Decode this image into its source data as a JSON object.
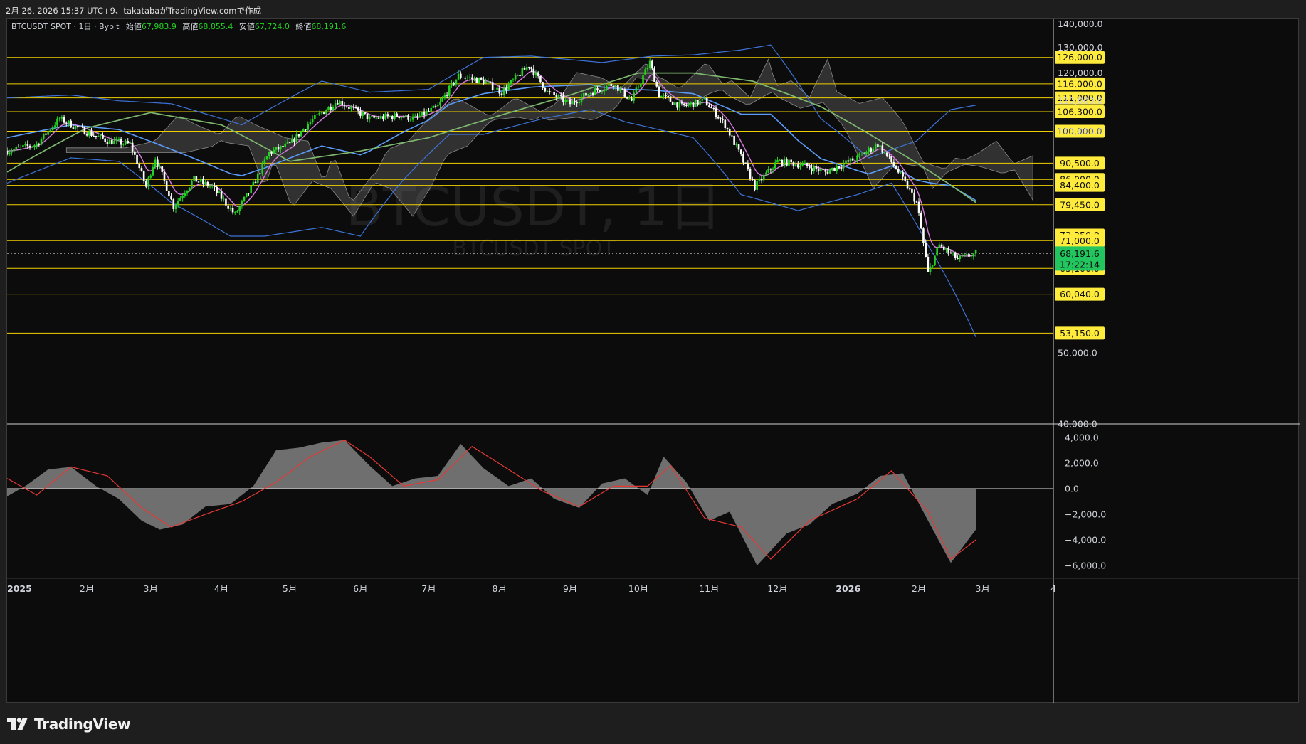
{
  "header": {
    "text": "2月 26, 2026 15:37 UTC+9、takatabaがTradingView.comで作成"
  },
  "legend": {
    "symbol": "BTCUSDT SPOT · 1日 · Bybit",
    "open_label": "始値",
    "open": "67,983.9",
    "high_label": "高値",
    "high": "68,855.4",
    "low_label": "安値",
    "low": "67,724.0",
    "close_label": "終値",
    "close": "68,191.6"
  },
  "watermark": {
    "title": "BTCUSDT, 1日",
    "subtitle": "BTCUSDT SPOT"
  },
  "footer": {
    "brand": "TradingView",
    "logo_icon": "tradingview-logo-icon"
  },
  "colors": {
    "background": "#0c0c0c",
    "level_line": "#f0d000",
    "level_label_bg": "#ffeb3b",
    "bull_candle": "#22d321",
    "bear_candle": "#ffffff",
    "bollinger": "#3d73d6",
    "mid_band": "#5b9bf8",
    "short_ma": "#d67bde",
    "long_ma": "#7fb86f",
    "cloud": "#606060",
    "macd_hist": "#757575",
    "macd_signal": "#e53935",
    "price_label_bg": "#22c55e"
  },
  "chart_data": [
    {
      "type": "line",
      "title": "BTCUSDT, 1日",
      "y_scale": "log",
      "ylim": [
        40000,
        142000
      ],
      "y_tick_labels": [
        "140,000.0",
        "130,000.0",
        "120,000.0",
        "110,000.0",
        "100,000.0",
        "50,000.0",
        "40,000.0"
      ],
      "y_ticks": [
        140000,
        130000,
        120000,
        110000,
        100000,
        50000,
        40000
      ],
      "x_tick_labels": [
        "2025",
        "2月",
        "3月",
        "4月",
        "5月",
        "6月",
        "7月",
        "8月",
        "9月",
        "10月",
        "11月",
        "12月",
        "2026",
        "2月",
        "3月",
        "4"
      ],
      "x_ticks": [
        "2025-01-01",
        "2025-02-01",
        "2025-03-01",
        "2025-04-01",
        "2025-05-01",
        "2025-06-01",
        "2025-07-01",
        "2025-08-01",
        "2025-09-01",
        "2025-10-01",
        "2025-11-01",
        "2025-12-01",
        "2026-01-01",
        "2026-02-01",
        "2026-03-01",
        "2026-04-01"
      ],
      "horizontal_levels": [
        126000,
        116000,
        111000,
        106300,
        100000,
        90500,
        86000,
        84400,
        79450,
        72250,
        71000,
        65100,
        60040,
        53150
      ],
      "horizontal_level_labels": [
        "126,000.0",
        "116,000.0",
        "111,000.0",
        "106,300.0",
        "100,000.0",
        "90,500.0",
        "86,000.0",
        "84,400.0",
        "79,450.0",
        "72,250.0",
        "71,000.0",
        "65,100.0",
        "60,040.0",
        "53,150.0"
      ],
      "last_price": 68191.6,
      "last_price_label": "68,191.6",
      "countdown": "17:22:14",
      "series": [
        {
          "role": "price",
          "x": [
            "2024-12-28",
            "2025-01-10",
            "2025-01-20",
            "2025-01-28",
            "2025-02-10",
            "2025-02-20",
            "2025-02-27",
            "2025-03-03",
            "2025-03-11",
            "2025-03-20",
            "2025-03-28",
            "2025-04-07",
            "2025-04-15",
            "2025-04-22",
            "2025-05-01",
            "2025-05-10",
            "2025-05-22",
            "2025-06-05",
            "2025-06-18",
            "2025-06-25",
            "2025-07-05",
            "2025-07-14",
            "2025-07-25",
            "2025-08-02",
            "2025-08-14",
            "2025-08-22",
            "2025-09-01",
            "2025-09-10",
            "2025-09-20",
            "2025-09-28",
            "2025-10-06",
            "2025-10-10",
            "2025-10-20",
            "2025-10-30",
            "2025-11-08",
            "2025-11-21",
            "2025-12-01",
            "2025-12-12",
            "2025-12-22",
            "2026-01-05",
            "2026-01-14",
            "2026-01-22",
            "2026-01-31",
            "2026-02-05",
            "2026-02-10",
            "2026-02-18",
            "2026-02-26"
          ],
          "values": [
            94000,
            96000,
            104000,
            101000,
            97000,
            96000,
            84000,
            92000,
            79000,
            86000,
            84000,
            77000,
            84500,
            93500,
            96000,
            103000,
            110000,
            104000,
            105000,
            104000,
            108000,
            119000,
            117000,
            113000,
            123000,
            113000,
            109000,
            113000,
            116000,
            110000,
            124000,
            112000,
            108000,
            110000,
            102000,
            84000,
            91000,
            90000,
            88000,
            92000,
            96000,
            89000,
            80000,
            64000,
            70000,
            67000,
            68191.6
          ]
        },
        {
          "role": "bollinger_upper",
          "x": [
            "2024-12-28",
            "2025-01-25",
            "2025-02-15",
            "2025-03-10",
            "2025-04-10",
            "2025-05-15",
            "2025-06-05",
            "2025-07-01",
            "2025-07-25",
            "2025-08-15",
            "2025-09-15",
            "2025-10-07",
            "2025-10-25",
            "2025-11-15",
            "2025-11-28",
            "2025-12-20",
            "2026-01-10",
            "2026-01-31",
            "2026-02-15",
            "2026-02-26"
          ],
          "values": [
            111000,
            112000,
            110000,
            109000,
            102000,
            117000,
            113000,
            114000,
            126000,
            126500,
            124000,
            126500,
            127000,
            129000,
            131000,
            104000,
            92000,
            97000,
            107000,
            108500
          ]
        },
        {
          "role": "bollinger_lower",
          "x": [
            "2024-12-28",
            "2025-01-25",
            "2025-02-15",
            "2025-03-10",
            "2025-04-05",
            "2025-04-20",
            "2025-05-15",
            "2025-06-01",
            "2025-06-20",
            "2025-07-10",
            "2025-07-25",
            "2025-08-20",
            "2025-09-10",
            "2025-09-25",
            "2025-10-25",
            "2025-11-15",
            "2025-12-10",
            "2026-01-05",
            "2026-01-20",
            "2026-02-05",
            "2026-02-26"
          ],
          "values": [
            85000,
            92000,
            91000,
            80000,
            72000,
            72000,
            74000,
            72000,
            86000,
            99000,
            99000,
            104000,
            107000,
            103000,
            98000,
            82000,
            78000,
            82000,
            85000,
            70000,
            52500
          ]
        },
        {
          "role": "long_ma",
          "x": [
            "2024-12-28",
            "2025-02-01",
            "2025-03-01",
            "2025-04-01",
            "2025-05-01",
            "2025-06-01",
            "2025-07-01",
            "2025-08-01",
            "2025-09-01",
            "2025-10-01",
            "2025-10-25",
            "2025-11-20",
            "2025-12-20",
            "2026-01-20",
            "2026-02-26"
          ],
          "values": [
            88000,
            101000,
            106000,
            102000,
            91000,
            94000,
            98000,
            105000,
            112000,
            120000,
            120000,
            117000,
            108000,
            95000,
            80000
          ]
        }
      ]
    },
    {
      "type": "area",
      "ylim": [
        -7000,
        5000
      ],
      "y_tick_labels": [
        "4,000.0",
        "2,000.0",
        "0.0",
        "−2,000.0",
        "−4,000.0",
        "−6,000.0"
      ],
      "y_ticks": [
        4000,
        2000,
        0,
        -2000,
        -4000,
        -6000
      ],
      "series": [
        {
          "role": "histogram",
          "x": [
            "2024-12-28",
            "2025-01-05",
            "2025-01-15",
            "2025-01-25",
            "2025-02-05",
            "2025-02-15",
            "2025-02-25",
            "2025-03-05",
            "2025-03-15",
            "2025-03-25",
            "2025-04-05",
            "2025-04-15",
            "2025-04-25",
            "2025-05-05",
            "2025-05-15",
            "2025-05-25",
            "2025-06-05",
            "2025-06-15",
            "2025-06-25",
            "2025-07-05",
            "2025-07-15",
            "2025-07-25",
            "2025-08-05",
            "2025-08-15",
            "2025-08-25",
            "2025-09-05",
            "2025-09-15",
            "2025-09-25",
            "2025-10-05",
            "2025-10-12",
            "2025-10-22",
            "2025-11-01",
            "2025-11-10",
            "2025-11-22",
            "2025-12-05",
            "2025-12-15",
            "2025-12-25",
            "2026-01-05",
            "2026-01-15",
            "2026-01-25",
            "2026-02-05",
            "2026-02-15",
            "2026-02-26"
          ],
          "values": [
            -600,
            200,
            1500,
            1700,
            200,
            -800,
            -2500,
            -3200,
            -2800,
            -1400,
            -1200,
            200,
            3000,
            3200,
            3600,
            3800,
            1800,
            200,
            800,
            1000,
            3500,
            1600,
            200,
            800,
            -800,
            -1500,
            400,
            800,
            -500,
            2500,
            500,
            -2500,
            -1800,
            -6000,
            -3500,
            -2800,
            -1200,
            -400,
            1000,
            1200,
            -2500,
            -5800,
            -3200
          ]
        },
        {
          "role": "signal",
          "x": [
            "2024-12-28",
            "2025-01-10",
            "2025-01-25",
            "2025-02-10",
            "2025-02-25",
            "2025-03-10",
            "2025-03-25",
            "2025-04-10",
            "2025-04-25",
            "2025-05-10",
            "2025-05-25",
            "2025-06-05",
            "2025-06-20",
            "2025-07-05",
            "2025-07-20",
            "2025-08-05",
            "2025-08-20",
            "2025-09-05",
            "2025-09-20",
            "2025-10-05",
            "2025-10-15",
            "2025-10-30",
            "2025-11-15",
            "2025-11-28",
            "2025-12-15",
            "2026-01-05",
            "2026-01-20",
            "2026-02-05",
            "2026-02-15",
            "2026-02-26"
          ],
          "values": [
            800,
            -500,
            1700,
            1000,
            -1500,
            -3000,
            -2000,
            -1000,
            500,
            2500,
            3800,
            2500,
            200,
            700,
            3300,
            1500,
            -200,
            -1400,
            200,
            200,
            1800,
            -2300,
            -3000,
            -5500,
            -2500,
            -800,
            1400,
            -1800,
            -5500,
            -4000
          ]
        }
      ]
    }
  ]
}
